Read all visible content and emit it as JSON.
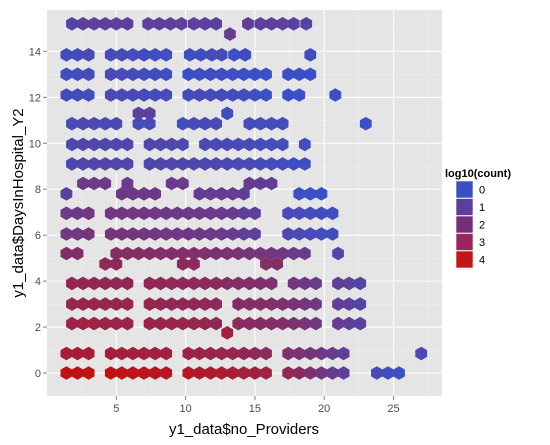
{
  "chart_data": {
    "type": "hexbin",
    "xlabel": "y1_data$no_Providers",
    "ylabel": "y1_data$DaysInHospital_Y2",
    "xlim": [
      0,
      28.5
    ],
    "ylim": [
      -1,
      15.8
    ],
    "x_ticks": [
      5,
      10,
      15,
      20,
      25
    ],
    "y_ticks": [
      0,
      2,
      4,
      6,
      8,
      10,
      12,
      14
    ],
    "grid": true,
    "legend": {
      "title": "log10(count)",
      "position": "right",
      "entries": [
        {
          "label": "0",
          "color": "#3a50c2"
        },
        {
          "label": "1",
          "color": "#5a3f9c"
        },
        {
          "label": "2",
          "color": "#752f7a"
        },
        {
          "label": "3",
          "color": "#9a255a"
        },
        {
          "label": "4",
          "color": "#c01818"
        }
      ]
    },
    "color_scale": {
      "low": "#3b50c8",
      "high": "#c41010",
      "min": 0,
      "max": 4.3
    },
    "rows": [
      {
        "y": 15.2,
        "x": [
          1.8,
          2.6,
          3.4,
          4.2,
          5.0,
          5.8,
          7.3,
          8.1,
          8.9,
          9.7,
          10.6,
          11.4,
          12.2,
          14.5,
          15.4,
          16.2,
          17.0,
          17.8,
          18.7
        ]
      },
      {
        "y": 14.75,
        "x": [
          13.2
        ]
      },
      {
        "y": 13.85,
        "x": [
          1.4,
          2.2,
          3.0,
          4.6,
          5.4,
          6.2,
          7.0,
          7.8,
          8.6,
          10.3,
          11.1,
          11.9,
          12.6,
          13.5,
          14.3,
          19.0
        ]
      },
      {
        "y": 13.0,
        "x": [
          1.4,
          2.2,
          3.0,
          4.6,
          5.4,
          6.2,
          7.0,
          7.8,
          8.6,
          10.2,
          11.0,
          11.8,
          12.6,
          13.4,
          14.2,
          15.0,
          15.8,
          17.4,
          18.2,
          19.0
        ]
      },
      {
        "y": 12.1,
        "x": [
          1.4,
          2.2,
          3.0,
          4.6,
          5.4,
          6.2,
          7.0,
          7.8,
          8.6,
          10.2,
          11.0,
          11.8,
          12.6,
          13.4,
          14.2,
          15.0,
          15.8,
          17.4,
          18.2,
          20.8
        ]
      },
      {
        "y": 11.3,
        "x": [
          6.6,
          7.4,
          13.0
        ]
      },
      {
        "y": 10.85,
        "x": [
          1.8,
          2.6,
          3.4,
          4.2,
          5.0,
          6.6,
          7.4,
          9.8,
          10.6,
          11.4,
          12.2,
          14.6,
          15.4,
          16.2,
          17.0,
          23.0
        ]
      },
      {
        "y": 9.95,
        "x": [
          1.8,
          2.6,
          3.4,
          4.2,
          5.0,
          5.8,
          7.4,
          8.2,
          9.0,
          9.8,
          11.4,
          12.2,
          13.0,
          13.8,
          14.6,
          15.4,
          16.2,
          17.0,
          18.6
        ]
      },
      {
        "y": 9.1,
        "x": [
          1.8,
          2.6,
          3.4,
          4.2,
          5.0,
          5.8,
          7.4,
          8.2,
          9.0,
          9.8,
          10.6,
          11.4,
          12.2,
          13.0,
          13.8,
          14.6,
          15.4,
          16.2,
          17.0,
          17.8,
          18.6
        ]
      },
      {
        "y": 8.25,
        "x": [
          2.6,
          3.4,
          4.2,
          5.8,
          9.0,
          9.8,
          14.6,
          15.4,
          16.2
        ]
      },
      {
        "y": 7.8,
        "x": [
          1.4,
          5.4,
          6.2,
          7.0,
          7.8,
          11.0,
          11.8,
          12.6,
          13.4,
          14.2,
          18.2,
          19.0,
          19.8
        ]
      },
      {
        "y": 6.95,
        "x": [
          1.4,
          2.2,
          3.0,
          4.6,
          5.4,
          6.2,
          7.0,
          7.8,
          8.6,
          9.4,
          10.2,
          11.0,
          11.8,
          12.6,
          13.4,
          14.2,
          15.0,
          17.4,
          18.2,
          19.0,
          19.8,
          20.6
        ]
      },
      {
        "y": 6.05,
        "x": [
          1.4,
          2.2,
          3.0,
          4.6,
          5.4,
          6.2,
          7.0,
          7.8,
          8.6,
          9.4,
          10.2,
          11.0,
          11.8,
          12.6,
          13.4,
          14.2,
          15.0,
          17.4,
          18.2,
          19.0,
          19.8,
          20.6
        ]
      },
      {
        "y": 5.2,
        "x": [
          1.4,
          2.2,
          5.0,
          5.8,
          6.6,
          7.4,
          8.2,
          9.0,
          9.8,
          10.6,
          11.4,
          12.2,
          13.0,
          13.8,
          14.6,
          15.4,
          16.2,
          17.0,
          17.8,
          18.6,
          21.0
        ]
      },
      {
        "y": 4.75,
        "x": [
          4.2,
          5.0,
          9.8,
          10.6,
          15.8,
          16.6
        ]
      },
      {
        "y": 3.9,
        "x": [
          1.8,
          2.6,
          3.4,
          4.2,
          5.0,
          5.8,
          7.4,
          8.2,
          9.0,
          9.8,
          10.6,
          11.4,
          12.2,
          13.0,
          13.8,
          14.6,
          15.4,
          16.2,
          17.8,
          18.6,
          19.4,
          21.0,
          21.8,
          22.6
        ]
      },
      {
        "y": 3.0,
        "x": [
          1.8,
          2.6,
          3.4,
          4.2,
          5.0,
          5.8,
          7.4,
          8.2,
          9.0,
          9.8,
          10.6,
          11.4,
          12.2,
          13.8,
          14.6,
          15.4,
          16.2,
          17.0,
          17.8,
          18.6,
          19.4,
          21.0,
          21.8,
          22.6
        ]
      },
      {
        "y": 2.15,
        "x": [
          1.8,
          2.6,
          3.4,
          4.2,
          5.0,
          5.8,
          7.4,
          8.2,
          9.0,
          9.8,
          10.6,
          11.4,
          12.2,
          13.8,
          14.6,
          15.4,
          16.2,
          17.0,
          17.8,
          18.6,
          19.4,
          21.0,
          21.8,
          22.6
        ]
      },
      {
        "y": 1.75,
        "x": [
          13.0
        ]
      },
      {
        "y": 0.85,
        "x": [
          1.4,
          2.2,
          3.0,
          4.6,
          5.4,
          6.2,
          7.0,
          7.8,
          8.6,
          10.2,
          11.0,
          11.8,
          12.6,
          13.4,
          14.2,
          15.0,
          15.8,
          17.4,
          18.2,
          19.0,
          19.8,
          20.6,
          21.4,
          27.0
        ]
      },
      {
        "y": 0.0,
        "x": [
          1.4,
          2.2,
          3.0,
          4.6,
          5.4,
          6.2,
          7.0,
          7.8,
          8.6,
          10.2,
          11.0,
          11.8,
          12.6,
          13.4,
          14.2,
          15.0,
          15.8,
          17.4,
          18.2,
          19.0,
          19.8,
          20.6,
          21.4,
          23.8,
          24.6,
          25.4
        ]
      }
    ],
    "levels": [
      [
        0.8,
        1.0,
        1.0,
        1.0,
        1.0,
        1.0,
        1.0,
        1.0,
        1.0,
        1.1,
        1.0,
        1.0,
        1.0,
        1.2,
        1.0,
        1.0,
        1.0,
        0.9,
        0.8
      ],
      [
        1.3
      ],
      [
        0.2,
        0.3,
        0.4,
        0.3,
        0.4,
        0.3,
        0.2,
        0.1,
        0.3,
        0.1,
        0.2,
        0.3,
        0.4,
        0.1,
        0.2,
        0.2
      ],
      [
        0.2,
        0.3,
        0.3,
        0.4,
        0.4,
        0.4,
        0.3,
        0.2,
        0.2,
        0.0,
        0.1,
        0.2,
        0.1,
        0.1,
        0.1,
        0.0,
        0.0,
        0.0,
        0.0,
        0.0
      ],
      [
        0.2,
        0.3,
        0.3,
        0.4,
        0.4,
        0.4,
        0.4,
        0.3,
        0.3,
        0.3,
        0.4,
        0.4,
        0.3,
        0.3,
        0.3,
        0.1,
        0.0,
        0.0,
        0.0,
        0.0
      ],
      [
        1.0,
        1.0,
        0.2
      ],
      [
        0.4,
        0.5,
        0.6,
        0.5,
        0.5,
        0.4,
        0.4,
        0.2,
        0.4,
        0.4,
        0.4,
        0.3,
        0.3,
        0.3,
        0.2,
        0.0
      ],
      [
        0.6,
        0.7,
        0.7,
        0.6,
        0.7,
        0.6,
        0.6,
        0.7,
        0.6,
        0.6,
        0.5,
        0.5,
        0.5,
        0.4,
        0.4,
        0.3,
        0.3,
        0.3,
        0.2
      ],
      [
        0.6,
        0.7,
        0.7,
        0.8,
        0.7,
        0.7,
        0.7,
        0.7,
        0.7,
        0.6,
        0.6,
        0.6,
        0.6,
        0.5,
        0.5,
        0.5,
        0.4,
        0.3,
        0.3,
        0.2,
        0.1
      ],
      [
        1.5,
        1.5,
        1.5,
        1.4,
        1.4,
        1.4,
        1.3,
        1.2,
        1.2
      ],
      [
        1.0,
        1.6,
        1.6,
        1.6,
        1.6,
        1.3,
        1.3,
        1.3,
        1.3,
        1.2,
        0.1,
        0.0,
        0.0
      ],
      [
        1.5,
        1.6,
        1.7,
        1.7,
        1.7,
        1.7,
        1.7,
        1.6,
        1.6,
        1.5,
        1.5,
        1.5,
        1.4,
        1.4,
        1.3,
        1.2,
        1.1,
        0.5,
        0.4,
        0.3,
        0.2,
        0.1
      ],
      [
        1.6,
        1.7,
        1.8,
        1.8,
        1.8,
        1.8,
        1.7,
        1.7,
        1.7,
        1.6,
        1.6,
        1.6,
        1.5,
        1.4,
        1.4,
        1.2,
        1.1,
        0.6,
        0.5,
        0.4,
        0.3,
        0.2
      ],
      [
        2.2,
        2.3,
        2.3,
        2.3,
        2.3,
        2.3,
        2.2,
        2.2,
        2.2,
        2.1,
        2.1,
        2.0,
        2.0,
        1.9,
        1.8,
        1.8,
        1.7,
        1.6,
        1.5,
        1.4,
        0.6
      ],
      [
        2.6,
        2.6,
        2.5,
        2.5,
        2.3,
        2.3
      ],
      [
        2.8,
        2.8,
        2.8,
        2.7,
        2.7,
        2.7,
        2.7,
        2.7,
        2.6,
        2.6,
        2.6,
        2.5,
        2.5,
        2.4,
        2.3,
        2.2,
        2.2,
        2.1,
        1.8,
        1.6,
        1.4,
        1.2,
        1.0,
        0.8
      ],
      [
        2.9,
        2.9,
        2.9,
        2.9,
        2.8,
        2.8,
        2.8,
        2.8,
        2.7,
        2.7,
        2.7,
        2.6,
        2.6,
        2.4,
        2.3,
        2.3,
        2.2,
        2.1,
        2.0,
        1.8,
        1.6,
        1.2,
        1.0,
        0.8
      ],
      [
        3.0,
        3.1,
        3.1,
        3.0,
        3.0,
        3.0,
        3.0,
        2.9,
        2.9,
        2.9,
        2.8,
        2.8,
        2.7,
        2.5,
        2.4,
        2.4,
        2.3,
        2.2,
        2.1,
        1.9,
        1.7,
        1.3,
        1.1,
        0.9
      ],
      [
        3.2
      ],
      [
        3.4,
        3.4,
        3.4,
        3.4,
        3.3,
        3.3,
        3.3,
        3.2,
        3.2,
        3.1,
        3.0,
        3.0,
        2.9,
        2.8,
        2.7,
        2.6,
        2.5,
        2.2,
        2.0,
        1.8,
        1.6,
        1.3,
        1.1,
        0.5
      ],
      [
        4.2,
        4.2,
        4.2,
        4.2,
        4.1,
        4.1,
        4.0,
        4.0,
        3.9,
        3.8,
        3.7,
        3.6,
        3.5,
        3.4,
        3.3,
        3.2,
        3.1,
        2.7,
        2.4,
        2.1,
        1.7,
        1.3,
        1.1,
        0.4,
        0.2,
        0.1
      ]
    ]
  }
}
